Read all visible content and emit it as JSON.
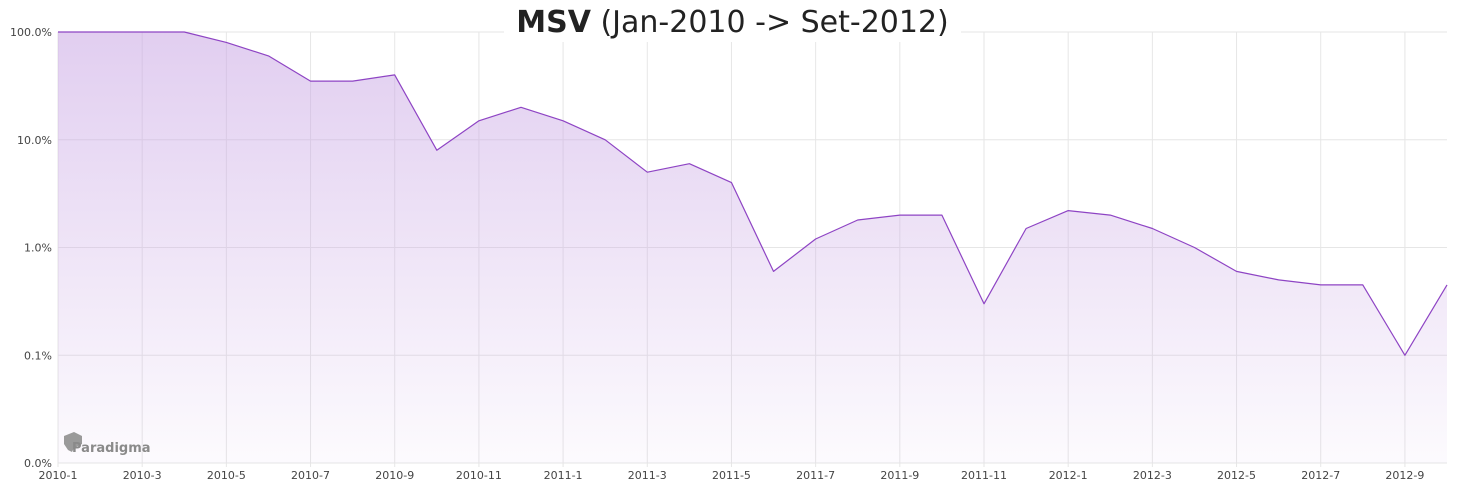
{
  "chart_data": {
    "type": "line",
    "title_bold": "MSV",
    "title_rest": " (Jan-2010 -> Set-2012)",
    "y_scale": "log",
    "y_tick_labels": [
      "100.0%",
      "10.0%",
      "1.0%",
      "0.1%",
      "0.0%"
    ],
    "y_tick_values": [
      100,
      10,
      1,
      0.1,
      0.01
    ],
    "ylim": [
      0.01,
      100
    ],
    "x_tick_labels": [
      "2010-1",
      "2010-3",
      "2010-5",
      "2010-7",
      "2010-9",
      "2010-11",
      "2011-1",
      "2011-3",
      "2011-5",
      "2011-7",
      "2011-9",
      "2011-11",
      "2012-1",
      "2012-3",
      "2012-5",
      "2012-7",
      "2012-9"
    ],
    "xlim": [
      "2010-01",
      "2012-10"
    ],
    "grid": true,
    "line_color": "#8e44c4",
    "fill_color": "#c9a6e4",
    "watermark": "Paradigma",
    "series": [
      {
        "x": [
          "2010-01",
          "2010-02",
          "2010-03",
          "2010-04",
          "2010-05",
          "2010-06",
          "2010-07",
          "2010-08",
          "2010-09",
          "2010-10",
          "2010-11",
          "2010-12",
          "2011-01",
          "2011-02",
          "2011-03",
          "2011-04",
          "2011-05",
          "2011-06",
          "2011-07",
          "2011-08",
          "2011-09",
          "2011-10",
          "2011-11",
          "2011-12",
          "2012-01",
          "2012-02",
          "2012-03",
          "2012-04",
          "2012-05",
          "2012-06",
          "2012-07",
          "2012-08",
          "2012-09",
          "2012-10"
        ],
        "values": [
          100,
          100,
          100,
          100,
          80,
          60,
          35,
          35,
          40,
          8,
          15,
          20,
          15,
          10,
          5,
          6,
          4,
          0.6,
          1.2,
          1.8,
          2.0,
          2.0,
          0.3,
          1.5,
          2.2,
          2.0,
          1.5,
          1.0,
          0.6,
          0.5,
          0.45,
          0.45,
          0.1,
          0.45
        ]
      }
    ]
  }
}
